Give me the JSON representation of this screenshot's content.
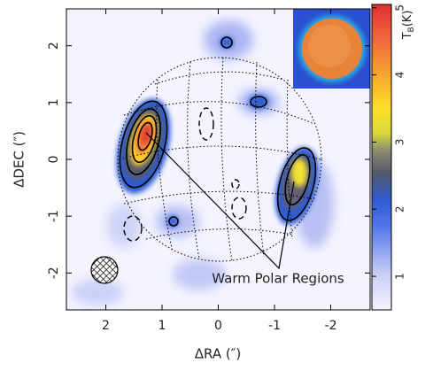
{
  "chart_data": {
    "type": "image",
    "x_label": "ΔRA (″)",
    "y_label": "ΔDEC (″)",
    "annotation": "Warm Polar Regions",
    "colorbar_label": [
      "T",
      "B",
      "(K)"
    ],
    "xlim": [
      2.7,
      -2.7
    ],
    "xticks": [
      2,
      1,
      0,
      -1,
      -2
    ],
    "ylim": [
      -2.65,
      2.65
    ],
    "yticks": [
      -2,
      -1,
      0,
      1,
      2
    ],
    "clim": [
      0.5,
      5.05
    ],
    "cticks": [
      1,
      2,
      3,
      4,
      5
    ]
  }
}
